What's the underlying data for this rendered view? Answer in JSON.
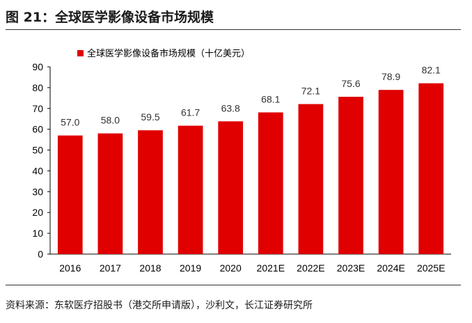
{
  "figure_title": "图 21：全球医学影像设备市场规模",
  "source_note": "资料来源：东软医疗招股书（港交所申请版），沙利文，长江证券研究所",
  "colors": {
    "bar": "#e00000",
    "axis": "#000000"
  },
  "chart_data": {
    "type": "bar",
    "categories": [
      "2016",
      "2017",
      "2018",
      "2019",
      "2020",
      "2021E",
      "2022E",
      "2023E",
      "2024E",
      "2025E"
    ],
    "series": [
      {
        "name": "全球医学影像设备市场规模（十亿美元）",
        "values": [
          57.0,
          58.0,
          59.5,
          61.7,
          63.8,
          68.1,
          72.1,
          75.6,
          78.9,
          82.1
        ],
        "labels": [
          "57.0",
          "58.0",
          "59.5",
          "61.7",
          "63.8",
          "68.1",
          "72.1",
          "75.6",
          "78.9",
          "82.1"
        ]
      }
    ],
    "yticks": [
      "0",
      "10",
      "20",
      "30",
      "40",
      "50",
      "60",
      "70",
      "80",
      "90"
    ],
    "ylim": [
      0,
      90
    ],
    "grid": false,
    "legend_position": "top-left"
  }
}
